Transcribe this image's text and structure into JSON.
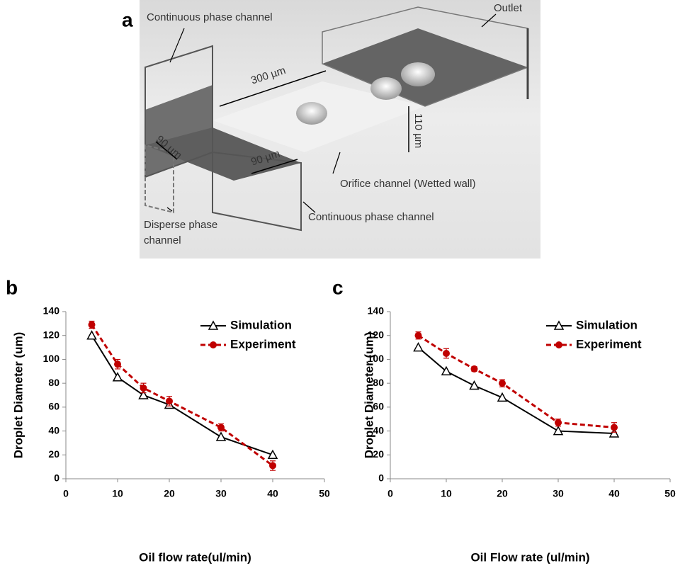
{
  "diagram": {
    "panel": "a",
    "labels": [
      "Continuous phase channel",
      "Outlet",
      "300 µm",
      "90 µm",
      "90 µm",
      "110 µm",
      "Orifice channel (Wetted wall)",
      "Continuous phase channel",
      "Disperse phase",
      "channel"
    ]
  },
  "chart_data": [
    {
      "type": "line",
      "panel": "b",
      "x_label": "Oil flow rate(ul/min)",
      "y_label": "Droplet Diameter (um)",
      "x": [
        5,
        10,
        15,
        20,
        30,
        40
      ],
      "xlim": [
        0,
        50
      ],
      "xticks": [
        0,
        10,
        20,
        30,
        40,
        50
      ],
      "ylim": [
        0,
        140
      ],
      "yticks": [
        0,
        20,
        40,
        60,
        80,
        100,
        120,
        140
      ],
      "legend": "top-right",
      "series": [
        {
          "name": "Simulation",
          "color": "#000000",
          "line_style": "solid",
          "marker": "triangle",
          "values": [
            120,
            85,
            70,
            62,
            35,
            20
          ]
        },
        {
          "name": "Experiment",
          "color": "#c00000",
          "line_style": "dashed",
          "marker": "circle",
          "values": [
            129,
            96,
            76,
            65,
            43,
            11
          ],
          "errors": [
            3,
            4,
            4,
            4,
            3,
            4
          ]
        }
      ]
    },
    {
      "type": "line",
      "panel": "c",
      "x_label": "Oil Flow rate (ul/min)",
      "y_label": "Droplet Diameter (um)",
      "x": [
        5,
        10,
        15,
        20,
        30,
        40
      ],
      "xlim": [
        0,
        50
      ],
      "xticks": [
        0,
        10,
        20,
        30,
        40,
        50
      ],
      "ylim": [
        0,
        140
      ],
      "yticks": [
        0,
        20,
        40,
        60,
        80,
        100,
        120,
        140
      ],
      "legend": "top-right",
      "series": [
        {
          "name": "Simulation",
          "color": "#000000",
          "line_style": "solid",
          "marker": "triangle",
          "values": [
            110,
            90,
            78,
            68,
            40,
            38
          ]
        },
        {
          "name": "Experiment",
          "color": "#c00000",
          "line_style": "dashed",
          "marker": "circle",
          "values": [
            120,
            105,
            92,
            80,
            47,
            43
          ],
          "errors": [
            3,
            4,
            2,
            3,
            3,
            4
          ]
        }
      ]
    }
  ]
}
